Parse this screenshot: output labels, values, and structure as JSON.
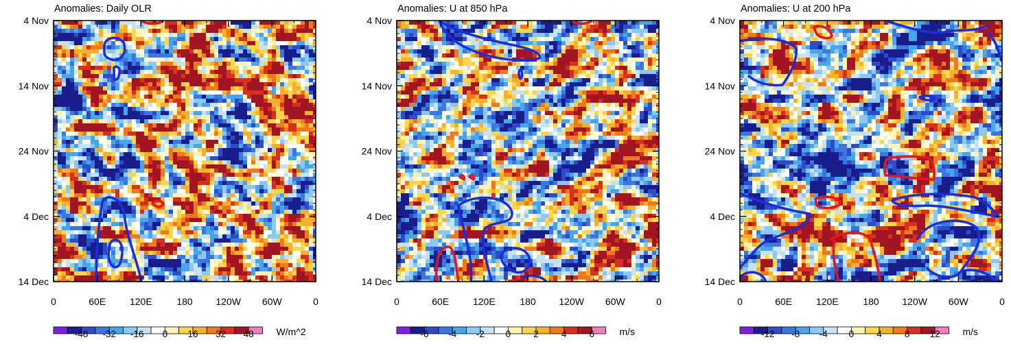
{
  "chart_data": [
    {
      "type": "heatmap",
      "title": "Anomalies: Daily OLR",
      "xlabel": "",
      "ylabel": "",
      "x_ticks": [
        "0",
        "60E",
        "120E",
        "180",
        "120W",
        "60W",
        "0"
      ],
      "x_range_deg": [
        0,
        360
      ],
      "y_ticks": [
        "4 Nov",
        "14 Nov",
        "24 Nov",
        "4 Dec",
        "14 Dec"
      ],
      "y_range_days": [
        0,
        40
      ],
      "colorbar": {
        "units": "W/m^2",
        "labels": [
          "-48",
          "-32",
          "-16",
          "0",
          "16",
          "32",
          "48"
        ],
        "levels": [
          -56,
          -48,
          -40,
          -32,
          -24,
          -16,
          -8,
          0,
          8,
          16,
          24,
          32,
          40,
          48,
          56
        ]
      },
      "positive_contour_color": "#e8141c",
      "negative_contour_color": "#1a2ee0"
    },
    {
      "type": "heatmap",
      "title": "Anomalies: U at 850 hPa",
      "xlabel": "",
      "ylabel": "",
      "x_ticks": [
        "0",
        "60E",
        "120E",
        "180",
        "120W",
        "60W",
        "0"
      ],
      "x_range_deg": [
        0,
        360
      ],
      "y_ticks": [
        "4 Nov",
        "14 Nov",
        "24 Nov",
        "4 Dec",
        "14 Dec"
      ],
      "y_range_days": [
        0,
        40
      ],
      "colorbar": {
        "units": "m/s",
        "labels": [
          "-6",
          "-4",
          "-2",
          "0",
          "2",
          "4",
          "6"
        ],
        "levels": [
          -7,
          -6,
          -5,
          -4,
          -3,
          -2,
          -1,
          0,
          1,
          2,
          3,
          4,
          5,
          6,
          7
        ]
      },
      "positive_contour_color": "#e8141c",
      "negative_contour_color": "#1a2ee0"
    },
    {
      "type": "heatmap",
      "title": "Anomalies: U at 200 hPa",
      "xlabel": "",
      "ylabel": "",
      "x_ticks": [
        "0",
        "60E",
        "120E",
        "180",
        "120W",
        "60W",
        "0"
      ],
      "x_range_deg": [
        0,
        360
      ],
      "y_ticks": [
        "4 Nov",
        "14 Nov",
        "24 Nov",
        "4 Dec",
        "14 Dec"
      ],
      "y_range_days": [
        0,
        40
      ],
      "colorbar": {
        "units": "m/s",
        "labels": [
          "-12",
          "-8",
          "-4",
          "0",
          "4",
          "8",
          "12"
        ],
        "levels": [
          -14,
          -12,
          -10,
          -8,
          -6,
          -4,
          -2,
          0,
          2,
          4,
          6,
          8,
          10,
          12,
          14
        ]
      },
      "positive_contour_color": "#e8141c",
      "negative_contour_color": "#1a2ee0"
    }
  ],
  "palette": [
    "#7d1fe6",
    "#1a1e8c",
    "#2f4cc8",
    "#3a78e0",
    "#46a6ec",
    "#8cc8f2",
    "#c4e4f6",
    "#ffffff",
    "#fff4b4",
    "#fbd64a",
    "#f5b02c",
    "#ef7a1e",
    "#d8301e",
    "#a11622",
    "#f07cc2"
  ]
}
